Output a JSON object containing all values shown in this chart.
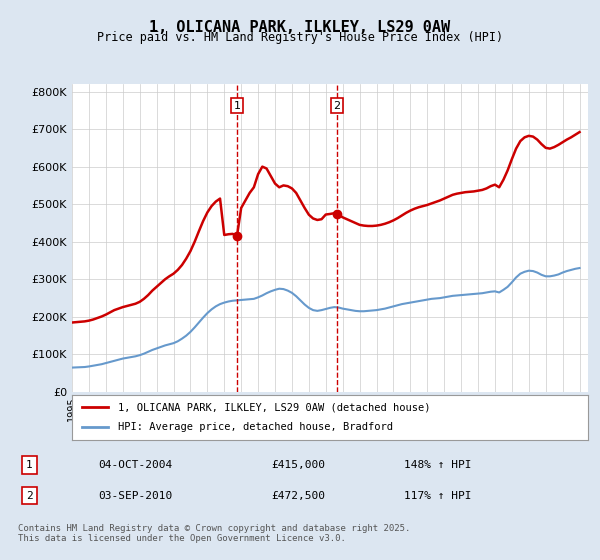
{
  "title": "1, OLICANA PARK, ILKLEY, LS29 0AW",
  "subtitle": "Price paid vs. HM Land Registry's House Price Index (HPI)",
  "ylabel_ticks": [
    "£0",
    "£100K",
    "£200K",
    "£300K",
    "£400K",
    "£500K",
    "£600K",
    "£700K",
    "£800K"
  ],
  "ytick_values": [
    0,
    100000,
    200000,
    300000,
    400000,
    500000,
    600000,
    700000,
    800000
  ],
  "ylim": [
    0,
    820000
  ],
  "xlim_start": 1995.0,
  "xlim_end": 2025.5,
  "sale1": {
    "label": "1",
    "date": "04-OCT-2004",
    "price": 415000,
    "pct": "148%",
    "x": 2004.75
  },
  "sale2": {
    "label": "2",
    "date": "03-SEP-2010",
    "price": 472500,
    "pct": "117%",
    "x": 2010.67
  },
  "legend_property": "1, OLICANA PARK, ILKLEY, LS29 0AW (detached house)",
  "legend_hpi": "HPI: Average price, detached house, Bradford",
  "footnote": "Contains HM Land Registry data © Crown copyright and database right 2025.\nThis data is licensed under the Open Government Licence v3.0.",
  "property_color": "#cc0000",
  "hpi_color": "#6699cc",
  "background_color": "#dce6f1",
  "plot_bg_color": "#ffffff",
  "grid_color": "#cccccc",
  "hpi_data": {
    "years": [
      1995.0,
      1995.25,
      1995.5,
      1995.75,
      1996.0,
      1996.25,
      1996.5,
      1996.75,
      1997.0,
      1997.25,
      1997.5,
      1997.75,
      1998.0,
      1998.25,
      1998.5,
      1998.75,
      1999.0,
      1999.25,
      1999.5,
      1999.75,
      2000.0,
      2000.25,
      2000.5,
      2000.75,
      2001.0,
      2001.25,
      2001.5,
      2001.75,
      2002.0,
      2002.25,
      2002.5,
      2002.75,
      2003.0,
      2003.25,
      2003.5,
      2003.75,
      2004.0,
      2004.25,
      2004.5,
      2004.75,
      2005.0,
      2005.25,
      2005.5,
      2005.75,
      2006.0,
      2006.25,
      2006.5,
      2006.75,
      2007.0,
      2007.25,
      2007.5,
      2007.75,
      2008.0,
      2008.25,
      2008.5,
      2008.75,
      2009.0,
      2009.25,
      2009.5,
      2009.75,
      2010.0,
      2010.25,
      2010.5,
      2010.75,
      2011.0,
      2011.25,
      2011.5,
      2011.75,
      2012.0,
      2012.25,
      2012.5,
      2012.75,
      2013.0,
      2013.25,
      2013.5,
      2013.75,
      2014.0,
      2014.25,
      2014.5,
      2014.75,
      2015.0,
      2015.25,
      2015.5,
      2015.75,
      2016.0,
      2016.25,
      2016.5,
      2016.75,
      2017.0,
      2017.25,
      2017.5,
      2017.75,
      2018.0,
      2018.25,
      2018.5,
      2018.75,
      2019.0,
      2019.25,
      2019.5,
      2019.75,
      2020.0,
      2020.25,
      2020.5,
      2020.75,
      2021.0,
      2021.25,
      2021.5,
      2021.75,
      2022.0,
      2022.25,
      2022.5,
      2022.75,
      2023.0,
      2023.25,
      2023.5,
      2023.75,
      2024.0,
      2024.25,
      2024.5,
      2024.75,
      2025.0
    ],
    "values": [
      65000,
      65500,
      66000,
      66500,
      68000,
      70000,
      72000,
      74000,
      77000,
      80000,
      83000,
      86000,
      89000,
      91000,
      93000,
      95000,
      98000,
      102000,
      107000,
      112000,
      116000,
      120000,
      124000,
      127000,
      130000,
      135000,
      142000,
      150000,
      160000,
      172000,
      185000,
      198000,
      210000,
      220000,
      228000,
      234000,
      238000,
      241000,
      243000,
      244000,
      245000,
      246000,
      247000,
      248000,
      252000,
      257000,
      263000,
      268000,
      272000,
      275000,
      274000,
      270000,
      264000,
      255000,
      244000,
      233000,
      224000,
      218000,
      216000,
      218000,
      221000,
      224000,
      226000,
      225000,
      222000,
      220000,
      218000,
      216000,
      215000,
      215000,
      216000,
      217000,
      218000,
      220000,
      222000,
      225000,
      228000,
      231000,
      234000,
      236000,
      238000,
      240000,
      242000,
      244000,
      246000,
      248000,
      249000,
      250000,
      252000,
      254000,
      256000,
      257000,
      258000,
      259000,
      260000,
      261000,
      262000,
      263000,
      265000,
      267000,
      268000,
      265000,
      272000,
      280000,
      292000,
      305000,
      315000,
      320000,
      323000,
      322000,
      318000,
      312000,
      308000,
      308000,
      310000,
      313000,
      318000,
      322000,
      325000,
      328000,
      330000
    ]
  },
  "property_data": {
    "years": [
      1995.0,
      1995.25,
      1995.5,
      1995.75,
      1996.0,
      1996.25,
      1996.5,
      1996.75,
      1997.0,
      1997.25,
      1997.5,
      1997.75,
      1998.0,
      1998.25,
      1998.5,
      1998.75,
      1999.0,
      1999.25,
      1999.5,
      1999.75,
      2000.0,
      2000.25,
      2000.5,
      2000.75,
      2001.0,
      2001.25,
      2001.5,
      2001.75,
      2002.0,
      2002.25,
      2002.5,
      2002.75,
      2003.0,
      2003.25,
      2003.5,
      2003.75,
      2004.0,
      2004.25,
      2004.5,
      2004.75,
      2005.0,
      2005.25,
      2005.5,
      2005.75,
      2006.0,
      2006.25,
      2006.5,
      2006.75,
      2007.0,
      2007.25,
      2007.5,
      2007.75,
      2008.0,
      2008.25,
      2008.5,
      2008.75,
      2009.0,
      2009.25,
      2009.5,
      2009.75,
      2010.0,
      2010.25,
      2010.5,
      2010.75,
      2011.0,
      2011.25,
      2011.5,
      2011.75,
      2012.0,
      2012.25,
      2012.5,
      2012.75,
      2013.0,
      2013.25,
      2013.5,
      2013.75,
      2014.0,
      2014.25,
      2014.5,
      2014.75,
      2015.0,
      2015.25,
      2015.5,
      2015.75,
      2016.0,
      2016.25,
      2016.5,
      2016.75,
      2017.0,
      2017.25,
      2017.5,
      2017.75,
      2018.0,
      2018.25,
      2018.5,
      2018.75,
      2019.0,
      2019.25,
      2019.5,
      2019.75,
      2020.0,
      2020.25,
      2020.5,
      2020.75,
      2021.0,
      2021.25,
      2021.5,
      2021.75,
      2022.0,
      2022.25,
      2022.5,
      2022.75,
      2023.0,
      2023.25,
      2023.5,
      2023.75,
      2024.0,
      2024.25,
      2024.5,
      2024.75,
      2025.0
    ],
    "values": [
      185000,
      186000,
      187000,
      188000,
      190000,
      193000,
      197000,
      201000,
      206000,
      212000,
      218000,
      222000,
      226000,
      229000,
      232000,
      235000,
      240000,
      248000,
      258000,
      270000,
      280000,
      290000,
      300000,
      308000,
      315000,
      325000,
      338000,
      355000,
      375000,
      400000,
      428000,
      455000,
      478000,
      495000,
      507000,
      515000,
      418000,
      420000,
      421000,
      415000,
      490000,
      510000,
      530000,
      545000,
      580000,
      600000,
      595000,
      575000,
      555000,
      545000,
      550000,
      548000,
      542000,
      530000,
      510000,
      490000,
      472000,
      462000,
      458000,
      460000,
      472500,
      474000,
      476000,
      472000,
      465000,
      460000,
      455000,
      450000,
      445000,
      443000,
      442000,
      442000,
      443000,
      445000,
      448000,
      452000,
      457000,
      463000,
      470000,
      477000,
      483000,
      488000,
      492000,
      495000,
      498000,
      502000,
      506000,
      510000,
      515000,
      520000,
      525000,
      528000,
      530000,
      532000,
      533000,
      534000,
      536000,
      538000,
      542000,
      548000,
      552000,
      545000,
      565000,
      590000,
      620000,
      648000,
      668000,
      678000,
      682000,
      680000,
      672000,
      660000,
      650000,
      648000,
      652000,
      658000,
      665000,
      672000,
      678000,
      685000,
      692000
    ]
  }
}
